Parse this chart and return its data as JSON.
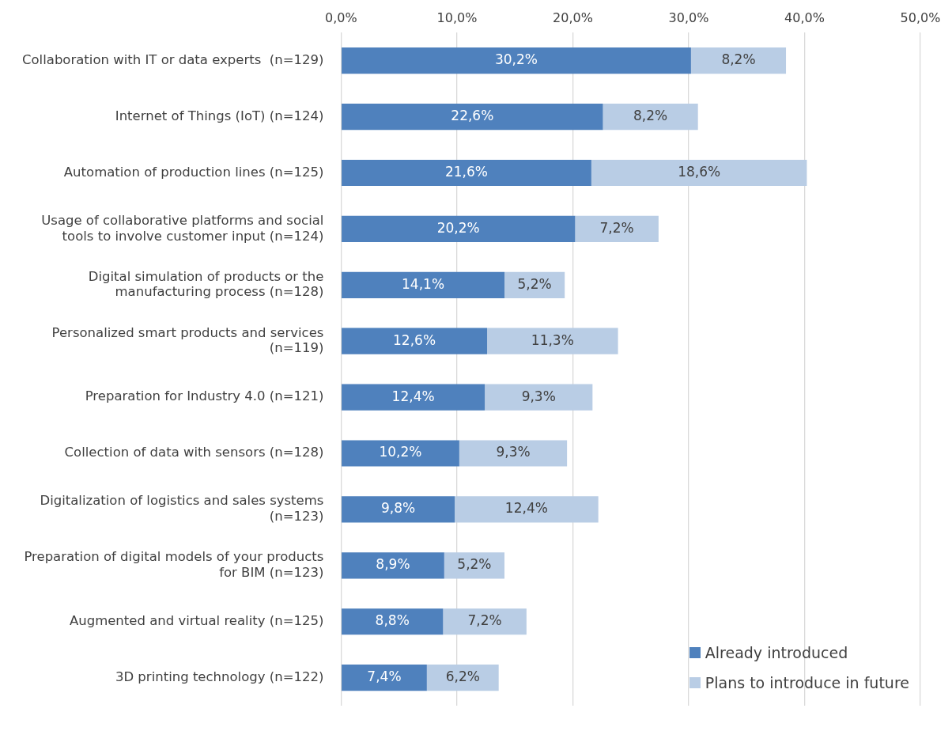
{
  "chart_data": {
    "type": "bar",
    "orientation": "horizontal",
    "stacked": true,
    "categories": [
      "Collaboration with IT or data experts  (n=129)",
      "Internet of Things (IoT) (n=124)",
      "Automation of production lines (n=125)",
      "Usage of collaborative platforms and social\ntools to involve customer input (n=124)",
      "Digital simulation of products or the\nmanufacturing process (n=128)",
      "Personalized smart products and services\n(n=119)",
      "Preparation for Industry 4.0 (n=121)",
      "Collection of data with sensors (n=128)",
      "Digitalization of logistics and sales systems\n(n=123)",
      "Preparation of digital models of your products\nfor BIM (n=123)",
      "Augmented and virtual reality (n=125)",
      "3D printing technology (n=122)"
    ],
    "series": [
      {
        "name": "Already introduced",
        "color": "#4f81bd",
        "values": [
          30.2,
          22.6,
          21.6,
          20.2,
          14.1,
          12.6,
          12.4,
          10.2,
          9.8,
          8.9,
          8.8,
          7.4
        ],
        "value_labels": [
          "30,2%",
          "22,6%",
          "21,6%",
          "20,2%",
          "14,1%",
          "12,6%",
          "12,4%",
          "10,2%",
          "9,8%",
          "8,9%",
          "8,8%",
          "7,4%"
        ]
      },
      {
        "name": "Plans to introduce in future",
        "color": "#b9cde5",
        "values": [
          8.2,
          8.2,
          18.6,
          7.2,
          5.2,
          11.3,
          9.3,
          9.3,
          12.4,
          5.2,
          7.2,
          6.2
        ],
        "value_labels": [
          "8,2%",
          "8,2%",
          "18,6%",
          "7,2%",
          "5,2%",
          "11,3%",
          "9,3%",
          "9,3%",
          "12,4%",
          "5,2%",
          "7,2%",
          "6,2%"
        ]
      }
    ],
    "xlim": [
      0,
      50
    ],
    "xticks": [
      {
        "value": 0,
        "label": "0,0%"
      },
      {
        "value": 10,
        "label": "10,0%"
      },
      {
        "value": 20,
        "label": "20,0%"
      },
      {
        "value": 30,
        "label": "30,0%"
      },
      {
        "value": 40,
        "label": "40,0%"
      },
      {
        "value": 50,
        "label": "50,0%"
      }
    ],
    "grid": "x",
    "legend": "bottom right"
  }
}
